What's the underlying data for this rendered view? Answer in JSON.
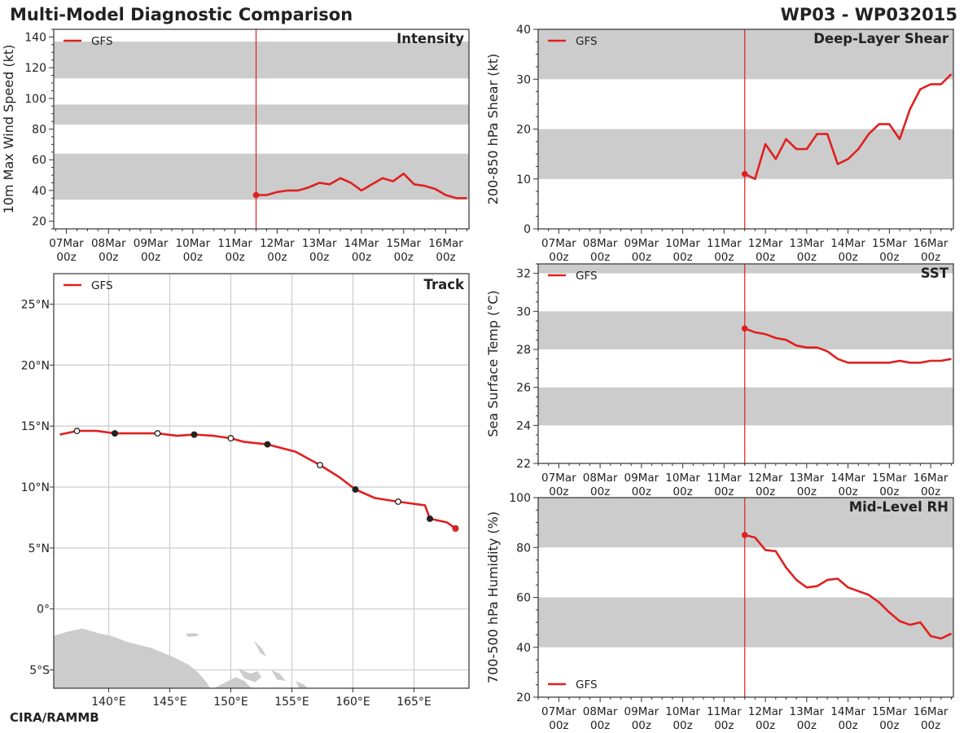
{
  "header": {
    "title": "Multi-Model Diagnostic Comparison",
    "storm_id": "WP03 - WP032015"
  },
  "footer": {
    "credit": "CIRA/RAMMB"
  },
  "colors": {
    "series": "#e02020",
    "band": "#cccccc",
    "grid": "#cccccc",
    "land": "#cccccc"
  },
  "chart_data": [
    {
      "id": "intensity",
      "type": "line",
      "title": "Intensity",
      "ylabel": "10m Max Wind Speed (kt)",
      "xlabel": "",
      "legend": [
        "GFS"
      ],
      "legend_position": "top-left",
      "time_ticks": [
        "07Mar\n00z",
        "08Mar\n00z",
        "09Mar\n00z",
        "10Mar\n00z",
        "11Mar\n00z",
        "12Mar\n00z",
        "13Mar\n00z",
        "14Mar\n00z",
        "15Mar\n00z",
        "16Mar\n00z"
      ],
      "xlim_days": [
        -0.3,
        9.55
      ],
      "ylim": [
        15,
        145
      ],
      "yticks": [
        20,
        40,
        60,
        80,
        100,
        120,
        140
      ],
      "bands": [
        [
          34,
          64
        ],
        [
          83,
          96
        ],
        [
          113,
          137
        ]
      ],
      "init_line_day": 4.5,
      "series": [
        {
          "name": "GFS",
          "x": [
            4.5,
            4.75,
            5.0,
            5.25,
            5.5,
            5.75,
            6.0,
            6.25,
            6.5,
            6.75,
            7.0,
            7.25,
            7.5,
            7.75,
            8.0,
            8.25,
            8.5,
            8.75,
            9.0,
            9.25,
            9.5
          ],
          "y": [
            37,
            37,
            39,
            40,
            40,
            42,
            45,
            44,
            48,
            45,
            40,
            44,
            48,
            46,
            51,
            44,
            43,
            41,
            37,
            35,
            35
          ]
        }
      ]
    },
    {
      "id": "shear",
      "type": "line",
      "title": "Deep-Layer Shear",
      "ylabel": "200-850 hPa Shear (kt)",
      "xlabel": "",
      "legend": [
        "GFS"
      ],
      "legend_position": "top-left",
      "time_ticks": [
        "07Mar\n00z",
        "08Mar\n00z",
        "09Mar\n00z",
        "10Mar\n00z",
        "11Mar\n00z",
        "12Mar\n00z",
        "13Mar\n00z",
        "14Mar\n00z",
        "15Mar\n00z",
        "16Mar\n00z"
      ],
      "xlim_days": [
        -0.5,
        9.55
      ],
      "ylim": [
        0,
        40
      ],
      "yticks": [
        0,
        10,
        20,
        30,
        40
      ],
      "bands": [
        [
          10,
          20
        ],
        [
          30,
          40
        ]
      ],
      "init_line_day": 4.5,
      "series": [
        {
          "name": "GFS",
          "x": [
            4.5,
            4.75,
            5.0,
            5.25,
            5.5,
            5.75,
            6.0,
            6.25,
            6.5,
            6.75,
            7.0,
            7.25,
            7.5,
            7.75,
            8.0,
            8.25,
            8.5,
            8.75,
            9.0,
            9.25,
            9.5
          ],
          "y": [
            11,
            10,
            17,
            14,
            18,
            16,
            16,
            19,
            19,
            13,
            14,
            16,
            19,
            21,
            21,
            18,
            24,
            28,
            29,
            29,
            31
          ]
        }
      ]
    },
    {
      "id": "sst",
      "type": "line",
      "title": "SST",
      "ylabel": "Sea Surface Temp (°C)",
      "xlabel": "",
      "legend": [
        "GFS"
      ],
      "legend_position": "top-left",
      "time_ticks": [
        "07Mar\n00z",
        "08Mar\n00z",
        "09Mar\n00z",
        "10Mar\n00z",
        "11Mar\n00z",
        "12Mar\n00z",
        "13Mar\n00z",
        "14Mar\n00z",
        "15Mar\n00z",
        "16Mar\n00z"
      ],
      "xlim_days": [
        -0.5,
        9.55
      ],
      "ylim": [
        22,
        32.5
      ],
      "yticks": [
        22,
        24,
        26,
        28,
        30,
        32
      ],
      "bands": [
        [
          24,
          26
        ],
        [
          28,
          30
        ],
        [
          32,
          32.5
        ]
      ],
      "init_line_day": 4.5,
      "series": [
        {
          "name": "GFS",
          "x": [
            4.5,
            4.75,
            5.0,
            5.25,
            5.5,
            5.75,
            6.0,
            6.25,
            6.5,
            6.75,
            7.0,
            7.25,
            7.5,
            7.75,
            8.0,
            8.25,
            8.5,
            8.75,
            9.0,
            9.25,
            9.5
          ],
          "y": [
            29.1,
            28.9,
            28.8,
            28.6,
            28.5,
            28.2,
            28.1,
            28.1,
            27.9,
            27.5,
            27.3,
            27.3,
            27.3,
            27.3,
            27.3,
            27.4,
            27.3,
            27.3,
            27.4,
            27.4,
            27.5
          ]
        }
      ]
    },
    {
      "id": "rh",
      "type": "line",
      "title": "Mid-Level RH",
      "ylabel": "700-500 hPa Humidity (%)",
      "xlabel": "",
      "legend": [
        "GFS"
      ],
      "legend_position": "bottom-left",
      "time_ticks": [
        "07Mar\n00z",
        "08Mar\n00z",
        "09Mar\n00z",
        "10Mar\n00z",
        "11Mar\n00z",
        "12Mar\n00z",
        "13Mar\n00z",
        "14Mar\n00z",
        "15Mar\n00z",
        "16Mar\n00z"
      ],
      "xlim_days": [
        -0.5,
        9.55
      ],
      "ylim": [
        20,
        100
      ],
      "yticks": [
        20,
        40,
        60,
        80,
        100
      ],
      "bands": [
        [
          40,
          60
        ],
        [
          80,
          100
        ]
      ],
      "init_line_day": 4.5,
      "series": [
        {
          "name": "GFS",
          "x": [
            4.5,
            4.75,
            5.0,
            5.25,
            5.5,
            5.75,
            6.0,
            6.25,
            6.5,
            6.75,
            7.0,
            7.25,
            7.5,
            7.75,
            8.0,
            8.25,
            8.5,
            8.75,
            9.0,
            9.25,
            9.5
          ],
          "y": [
            85,
            84,
            79,
            78.5,
            72,
            67,
            64,
            64.5,
            67,
            67.5,
            64,
            62.5,
            61,
            58,
            54,
            50.5,
            49,
            50,
            44.5,
            43.5,
            45.5
          ]
        }
      ]
    },
    {
      "id": "track",
      "type": "line",
      "title": "Track",
      "xlabel": "",
      "ylabel": "",
      "legend": [
        "GFS"
      ],
      "legend_position": "top-left",
      "xlim": [
        135.5,
        169.5
      ],
      "ylim": [
        -6.5,
        27.5
      ],
      "xticks": [
        140,
        145,
        150,
        155,
        160,
        165
      ],
      "xtick_labels": [
        "140°E",
        "145°E",
        "150°E",
        "155°E",
        "160°E",
        "165°E"
      ],
      "yticks": [
        -5,
        0,
        5,
        10,
        15,
        20,
        25
      ],
      "ytick_labels": [
        "5°S",
        "0°",
        "5°N",
        "10°N",
        "15°N",
        "20°N",
        "25°N"
      ],
      "series": [
        {
          "name": "GFS",
          "lon": [
            168.4,
            167.7,
            166.3,
            165.9,
            163.7,
            161.8,
            160.2,
            158.9,
            157.3,
            155.3,
            153.0,
            151.1,
            150.0,
            148.6,
            147.0,
            145.6,
            144.0,
            142.1,
            140.5,
            139.0,
            137.4,
            136.0
          ],
          "lat": [
            6.6,
            7.1,
            7.4,
            8.5,
            8.8,
            9.1,
            9.8,
            10.8,
            11.8,
            12.9,
            13.5,
            13.7,
            14.0,
            14.2,
            14.3,
            14.2,
            14.4,
            14.4,
            14.4,
            14.6,
            14.6,
            14.3
          ]
        }
      ],
      "markers_open": [
        [
          163.7,
          8.8
        ],
        [
          157.3,
          11.8
        ],
        [
          150.0,
          14.0
        ],
        [
          144.0,
          14.4
        ],
        [
          137.4,
          14.6
        ]
      ],
      "markers_filled": [
        [
          168.4,
          6.6
        ],
        [
          166.3,
          7.4
        ],
        [
          160.2,
          9.8
        ],
        [
          153.0,
          13.5
        ],
        [
          147.0,
          14.3
        ],
        [
          140.5,
          14.4
        ]
      ]
    }
  ]
}
